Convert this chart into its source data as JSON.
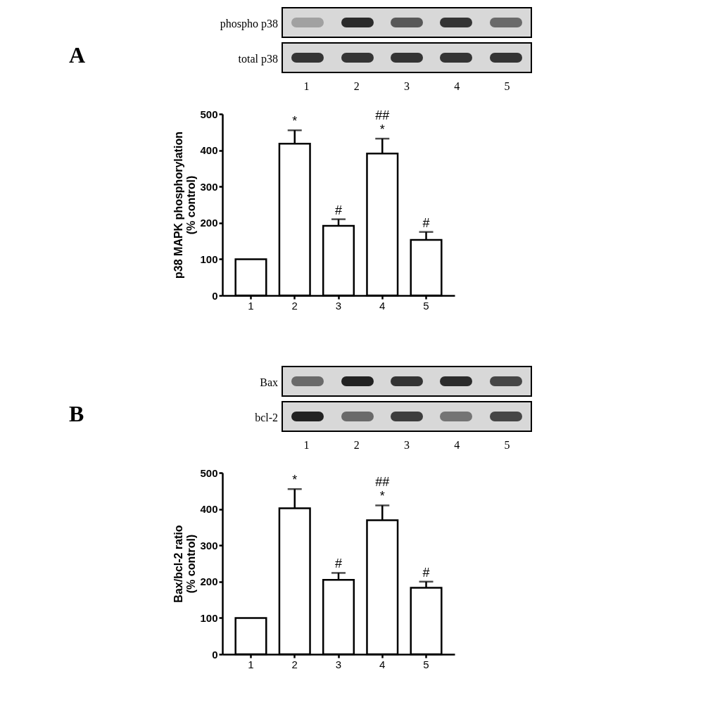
{
  "chart_data": [
    {
      "type": "bar",
      "categories": [
        "1",
        "2",
        "3",
        "4",
        "5"
      ],
      "values": [
        100,
        418,
        192,
        391,
        153
      ],
      "errors": [
        null,
        [
          418,
          455
        ],
        [
          192,
          210
        ],
        [
          391,
          432
        ],
        [
          153,
          175
        ]
      ],
      "color": "#ffffff",
      "ylabel": "p38 MAPK phosphorylation\n(% control)",
      "ylim": [
        0,
        500
      ],
      "yticks": [
        0,
        100,
        200,
        300,
        400,
        500
      ],
      "grid": false,
      "annotations": [
        "A",
        "phospho p38",
        "total p38",
        {
          "text": "*",
          "x": "2",
          "y": 455
        },
        {
          "text": "#",
          "x": "3",
          "y": 210
        },
        {
          "text": "*",
          "x": "4",
          "y": 432
        },
        {
          "text": "##",
          "x": "4",
          "y": 432
        },
        {
          "text": "#",
          "x": "5",
          "y": 175
        }
      ]
    },
    {
      "type": "bar",
      "categories": [
        "1",
        "2",
        "3",
        "4",
        "5"
      ],
      "values": [
        100,
        402,
        205,
        369,
        183
      ],
      "errors": [
        null,
        [
          402,
          455
        ],
        [
          205,
          224
        ],
        [
          369,
          410
        ],
        [
          183,
          200
        ]
      ],
      "color": "#ffffff",
      "ylabel": "Bax/bcl-2 ratio\n(% control)",
      "ylim": [
        0,
        500
      ],
      "yticks": [
        0,
        100,
        200,
        300,
        400,
        500
      ],
      "grid": false,
      "annotations": [
        "B",
        "Bax",
        "bcl-2",
        {
          "text": "*",
          "x": "2",
          "y": 455
        },
        {
          "text": "#",
          "x": "3",
          "y": 224
        },
        {
          "text": "*",
          "x": "4",
          "y": 410
        },
        {
          "text": "##",
          "x": "4",
          "y": 410
        },
        {
          "text": "#",
          "x": "5",
          "y": 200
        }
      ]
    }
  ]
}
